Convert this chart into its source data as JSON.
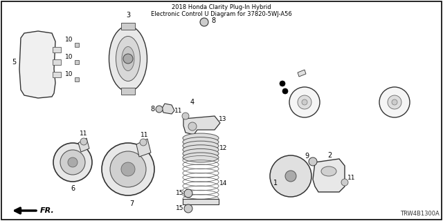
{
  "background_color": "#ffffff",
  "diagram_code": "TRW4B1300A",
  "figsize": [
    6.4,
    3.2
  ],
  "dpi": 100,
  "title1": "2018 Honda Clarity Plug-In Hybrid",
  "title2": "Electronic Control U Diagram for 37820-5WJ-A56",
  "border_color": "#000000",
  "line_color": "#333333",
  "light_fill": "#e8e8e8",
  "mid_fill": "#cccccc",
  "dark_fill": "#888888"
}
